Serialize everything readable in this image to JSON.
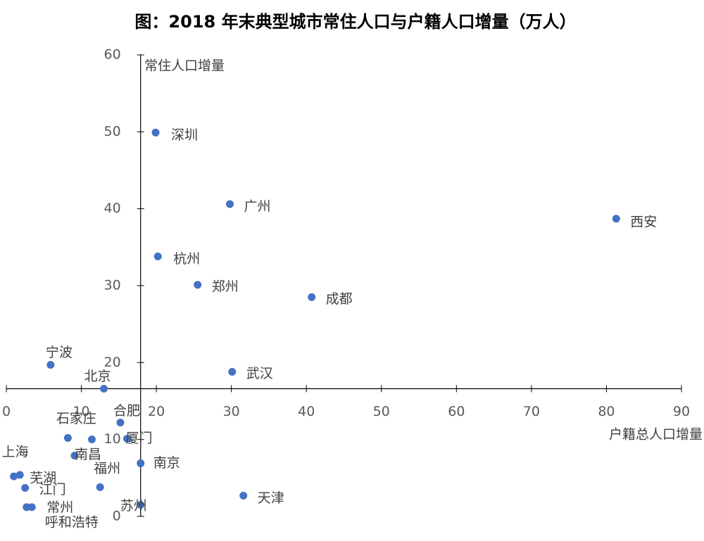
{
  "chart_data": {
    "type": "scatter",
    "title": "图：2018 年末典型城市常住人口与户籍人口增量（万人）",
    "xlabel": "户籍总人口增量",
    "ylabel": "常住人口增量",
    "color": "#4472c4",
    "xlim": [
      0,
      90
    ],
    "ylim": [
      0,
      60
    ],
    "xticks": [
      0,
      10,
      20,
      30,
      40,
      50,
      60,
      70,
      80,
      90
    ],
    "yticks": [
      0,
      10,
      20,
      30,
      40,
      50,
      60
    ],
    "x_axis_at": 16.6,
    "y_axis_at": 17.9,
    "labels": [
      "深圳",
      "广州",
      "西安",
      "杭州",
      "郑州",
      "成都",
      "宁波",
      "武汉",
      "北京",
      "合肥",
      "石家庄",
      null,
      "厦门",
      "南京",
      "上海",
      "芜湖",
      "江门",
      "南昌",
      "福州",
      "苏州",
      "常州",
      "呼和浩特",
      "天津"
    ],
    "x": [
      19.9,
      29.8,
      81.3,
      20.2,
      25.5,
      40.7,
      5.9,
      30.1,
      13.0,
      15.2,
      8.2,
      11.4,
      16.1,
      17.9,
      1.0,
      1.8,
      2.5,
      9.1,
      12.5,
      17.9,
      3.4,
      2.7,
      31.6
    ],
    "values": [
      49.9,
      40.6,
      38.7,
      33.8,
      30.1,
      28.5,
      19.7,
      18.8,
      16.6,
      12.2,
      10.2,
      10.0,
      10.1,
      6.9,
      5.2,
      5.4,
      3.7,
      7.9,
      3.8,
      1.5,
      1.2,
      1.2,
      2.7
    ]
  }
}
